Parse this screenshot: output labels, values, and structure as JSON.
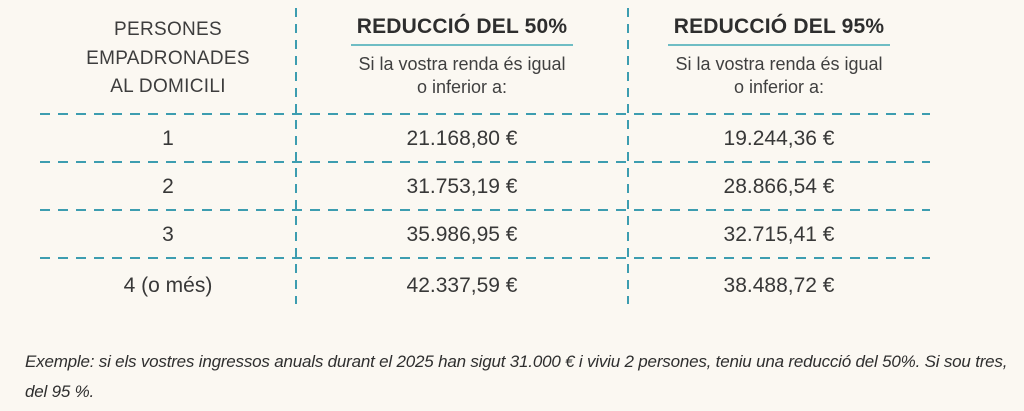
{
  "table": {
    "col1_header": "PERSONES\nEMPADRONADES\nAL DOMICILI",
    "col50": {
      "title": "REDUCCIÓ DEL 50%",
      "subtitle": "Si la vostra renda és igual o inferior a:"
    },
    "col95": {
      "title": "REDUCCIÓ DEL 95%",
      "subtitle": "Si la vostra renda és igual o inferior a:"
    },
    "rows": [
      {
        "persons": "1",
        "r50": "21.168,80 €",
        "r95": "19.244,36 €"
      },
      {
        "persons": "2",
        "r50": "31.753,19 €",
        "r95": "28.866,54 €"
      },
      {
        "persons": "3",
        "r50": "35.986,95 €",
        "r95": "32.715,41 €"
      },
      {
        "persons": "4 (o més)",
        "r50": "42.337,59 €",
        "r95": "38.488,72 €"
      }
    ]
  },
  "footer": {
    "text": "Exemple: si els vostres ingressos anuals durant el 2025 han sigut 31.000 € i viviu 2 persones, teniu una reducció del 50%. Si sou tres, del 95 %."
  },
  "colors": {
    "dash_teal": "#3d9db0",
    "underline_teal": "#6fbdc4",
    "text_dark": "#3c3c3c",
    "background": "#fbf8f2"
  }
}
